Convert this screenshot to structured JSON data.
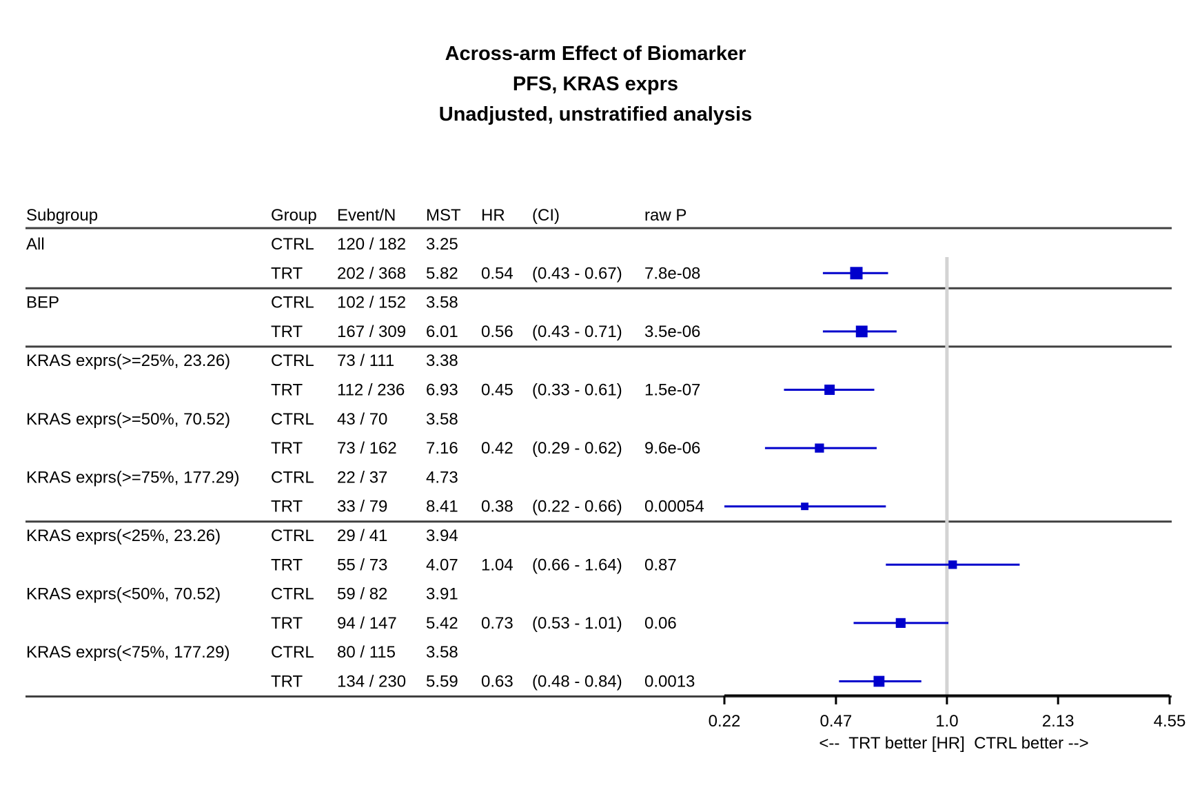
{
  "titles": [
    "Across-arm Effect of Biomarker",
    "PFS, KRAS exprs",
    "Unadjusted, unstratified analysis"
  ],
  "chart_data": {
    "type": "forest",
    "columns": [
      "Subgroup",
      "Group",
      "Event/N",
      "MST",
      "HR",
      "(CI)",
      "raw P"
    ],
    "rows": [
      {
        "subgroup": "All",
        "group": "CTRL",
        "event_n": "120 / 182",
        "mst": "3.25",
        "hr": "",
        "ci": "",
        "p": ""
      },
      {
        "subgroup": "",
        "group": "TRT",
        "event_n": "202 / 368",
        "mst": "5.82",
        "hr": "0.54",
        "ci": "(0.43 - 0.67)",
        "p": "7.8e-08"
      },
      {
        "subgroup": "BEP",
        "group": "CTRL",
        "event_n": "102 / 152",
        "mst": "3.58",
        "hr": "",
        "ci": "",
        "p": ""
      },
      {
        "subgroup": "",
        "group": "TRT",
        "event_n": "167 / 309",
        "mst": "6.01",
        "hr": "0.56",
        "ci": "(0.43 - 0.71)",
        "p": "3.5e-06"
      },
      {
        "subgroup": "KRAS exprs(>=25%, 23.26)",
        "group": "CTRL",
        "event_n": "73 / 111",
        "mst": "3.38",
        "hr": "",
        "ci": "",
        "p": ""
      },
      {
        "subgroup": "",
        "group": "TRT",
        "event_n": "112 / 236",
        "mst": "6.93",
        "hr": "0.45",
        "ci": "(0.33 - 0.61)",
        "p": "1.5e-07"
      },
      {
        "subgroup": "KRAS exprs(>=50%, 70.52)",
        "group": "CTRL",
        "event_n": "43 / 70",
        "mst": "3.58",
        "hr": "",
        "ci": "",
        "p": ""
      },
      {
        "subgroup": "",
        "group": "TRT",
        "event_n": "73 / 162",
        "mst": "7.16",
        "hr": "0.42",
        "ci": "(0.29 - 0.62)",
        "p": "9.6e-06"
      },
      {
        "subgroup": "KRAS exprs(>=75%, 177.29)",
        "group": "CTRL",
        "event_n": "22 / 37",
        "mst": "4.73",
        "hr": "",
        "ci": "",
        "p": ""
      },
      {
        "subgroup": "",
        "group": "TRT",
        "event_n": "33 / 79",
        "mst": "8.41",
        "hr": "0.38",
        "ci": "(0.22 - 0.66)",
        "p": "0.00054"
      },
      {
        "subgroup": "KRAS exprs(<25%, 23.26)",
        "group": "CTRL",
        "event_n": "29 / 41",
        "mst": "3.94",
        "hr": "",
        "ci": "",
        "p": ""
      },
      {
        "subgroup": "",
        "group": "TRT",
        "event_n": "55 / 73",
        "mst": "4.07",
        "hr": "1.04",
        "ci": "(0.66 - 1.64)",
        "p": "0.87"
      },
      {
        "subgroup": "KRAS exprs(<50%, 70.52)",
        "group": "CTRL",
        "event_n": "59 / 82",
        "mst": "3.91",
        "hr": "",
        "ci": "",
        "p": ""
      },
      {
        "subgroup": "",
        "group": "TRT",
        "event_n": "94 / 147",
        "mst": "5.42",
        "hr": "0.73",
        "ci": "(0.53 - 1.01)",
        "p": "0.06"
      },
      {
        "subgroup": "KRAS exprs(<75%, 177.29)",
        "group": "CTRL",
        "event_n": "80 / 115",
        "mst": "3.58",
        "hr": "",
        "ci": "",
        "p": ""
      },
      {
        "subgroup": "",
        "group": "TRT",
        "event_n": "134 / 230",
        "mst": "5.59",
        "hr": "0.63",
        "ci": "(0.48 - 0.84)",
        "p": "0.0013"
      }
    ],
    "estimates": [
      {
        "hr": 0.54,
        "lo": 0.43,
        "hi": 0.67,
        "events": 202
      },
      {
        "hr": 0.56,
        "lo": 0.43,
        "hi": 0.71,
        "events": 167
      },
      {
        "hr": 0.45,
        "lo": 0.33,
        "hi": 0.61,
        "events": 112
      },
      {
        "hr": 0.42,
        "lo": 0.29,
        "hi": 0.62,
        "events": 73
      },
      {
        "hr": 0.38,
        "lo": 0.22,
        "hi": 0.66,
        "events": 33
      },
      {
        "hr": 1.04,
        "lo": 0.66,
        "hi": 1.64,
        "events": 55
      },
      {
        "hr": 0.73,
        "lo": 0.53,
        "hi": 1.01,
        "events": 94
      },
      {
        "hr": 0.63,
        "lo": 0.48,
        "hi": 0.84,
        "events": 134
      }
    ],
    "x_axis": {
      "scale": "log",
      "range": [
        0.22,
        4.55
      ],
      "ticks": [
        0.22,
        0.47,
        1.0,
        2.13,
        4.55
      ],
      "tick_labels": [
        "0.22",
        "0.47",
        "1.0",
        "2.13",
        "4.55"
      ],
      "label": "<--  TRT better [HR]  CTRL better -->"
    },
    "reference_line": 1.0,
    "marker_color": "#0000cc",
    "reference_color": "#d3d3d3",
    "group_separators_after_rows": [
      1,
      3,
      9
    ]
  }
}
